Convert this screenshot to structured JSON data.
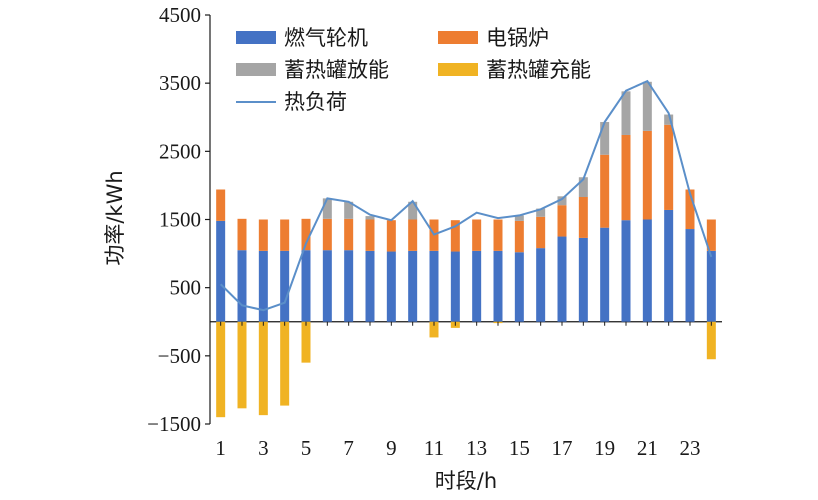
{
  "chart_data": {
    "type": "bar",
    "title": "",
    "xlabel": "时段/h",
    "ylabel": "功率/kWh",
    "ylim": [
      -1500,
      4500
    ],
    "yticks": [
      -1500,
      -500,
      500,
      1500,
      2500,
      3500,
      4500
    ],
    "ytick_labels": [
      "−1500",
      "−500",
      "500",
      "1500",
      "2500",
      "3500",
      "4500"
    ],
    "xtick_labels": [
      "1",
      "3",
      "5",
      "7",
      "9",
      "11",
      "13",
      "15",
      "17",
      "19",
      "21",
      "23"
    ],
    "categories": [
      1,
      2,
      3,
      4,
      5,
      6,
      7,
      8,
      9,
      10,
      11,
      12,
      13,
      14,
      15,
      16,
      17,
      18,
      19,
      20,
      21,
      22,
      23,
      24
    ],
    "stacked": true,
    "grid": false,
    "legend_position": "top",
    "series": [
      {
        "name": "燃气轮机",
        "kind": "bar",
        "color": "#4472C4",
        "values": [
          1480,
          1050,
          1040,
          1040,
          1050,
          1050,
          1050,
          1040,
          1030,
          1040,
          1040,
          1030,
          1040,
          1040,
          1020,
          1080,
          1250,
          1230,
          1380,
          1490,
          1500,
          1640,
          1360,
          1040
        ]
      },
      {
        "name": "电锅炉",
        "kind": "bar",
        "color": "#ED7D31",
        "values": [
          460,
          460,
          460,
          460,
          460,
          460,
          460,
          460,
          460,
          460,
          460,
          460,
          460,
          460,
          460,
          460,
          460,
          600,
          1070,
          1250,
          1300,
          1250,
          580,
          460
        ]
      },
      {
        "name": "蓄热罐放能",
        "kind": "bar",
        "color": "#A5A5A5",
        "values": [
          0,
          0,
          0,
          0,
          0,
          300,
          250,
          50,
          0,
          260,
          0,
          0,
          0,
          0,
          80,
          120,
          130,
          290,
          480,
          640,
          720,
          150,
          0,
          0
        ]
      },
      {
        "name": "蓄热罐充能",
        "kind": "bar",
        "color": "#F0B323",
        "values": [
          -1400,
          -1270,
          -1370,
          -1230,
          -600,
          0,
          0,
          0,
          0,
          0,
          -230,
          -90,
          0,
          -20,
          0,
          0,
          0,
          0,
          0,
          0,
          0,
          0,
          0,
          -550
        ]
      },
      {
        "name": "热负荷",
        "kind": "line",
        "color": "#5B8FC9",
        "values": [
          550,
          240,
          170,
          280,
          1150,
          1810,
          1760,
          1570,
          1490,
          1770,
          1280,
          1400,
          1600,
          1520,
          1560,
          1650,
          1800,
          2090,
          2930,
          3390,
          3530,
          3060,
          1880,
          950
        ]
      }
    ]
  }
}
